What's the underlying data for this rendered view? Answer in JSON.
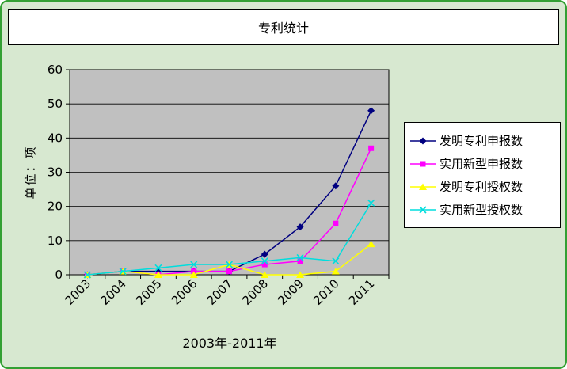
{
  "chart_data": {
    "type": "line",
    "title": "专利统计",
    "xlabel": "2003年-2011年",
    "ylabel": "单位：项",
    "categories": [
      "2003",
      "2004",
      "2005",
      "2006",
      "2007",
      "2008",
      "2009",
      "2010",
      "2011"
    ],
    "ylim": [
      0,
      60
    ],
    "ytick_step": 10,
    "grid": true,
    "legend_position": "right",
    "series": [
      {
        "name": "发明专利申报数",
        "marker": "diamond",
        "color": "#000080",
        "values": [
          0,
          1,
          1,
          1,
          1,
          6,
          14,
          26,
          48
        ]
      },
      {
        "name": "实用新型申报数",
        "marker": "square",
        "color": "#ff00ff",
        "values": [
          0,
          1,
          0,
          1,
          1,
          3,
          4,
          15,
          37
        ]
      },
      {
        "name": "发明专利授权数",
        "marker": "triangle",
        "color": "#ffff00",
        "values": [
          0,
          1,
          0,
          0,
          3,
          0,
          0,
          1,
          9
        ]
      },
      {
        "name": "实用新型授权数",
        "marker": "x",
        "color": "#00dddd",
        "values": [
          0,
          1,
          2,
          3,
          3,
          4,
          5,
          4,
          21
        ]
      }
    ],
    "colors": {
      "plot_bg": "#c0c0c0",
      "page_bg": "#d7e8d0",
      "frame": "#33a033",
      "title_bg": "#ffffff",
      "legend_bg": "#ffffff",
      "grid": "#000000"
    }
  }
}
